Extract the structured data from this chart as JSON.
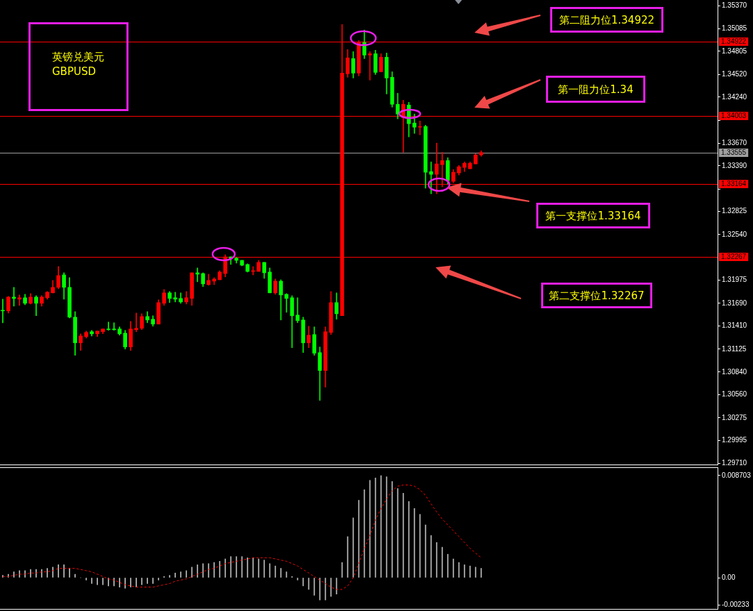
{
  "chart_data": [
    {
      "type": "candlestick",
      "title": "英镑兑美元\nGBPUSD",
      "annotations": [
        "第二阻力位1.34922",
        "第一阻力位1.34",
        "第一支撑位1.33164",
        "第二支撑位1.32267"
      ],
      "categories": [
        null,
        null,
        null,
        null,
        null,
        null,
        null,
        null,
        null,
        null,
        null,
        null,
        null,
        null,
        null,
        null,
        null,
        null,
        null,
        null,
        null,
        null,
        null,
        null,
        null,
        null,
        null,
        null,
        null,
        null,
        null,
        null,
        null,
        null,
        null,
        null,
        null,
        null,
        null,
        null,
        null,
        null,
        null,
        null,
        null,
        null,
        null,
        null,
        null,
        null,
        null,
        null,
        null,
        null,
        null,
        null,
        null,
        null,
        null,
        null,
        null,
        null,
        null,
        null,
        null,
        null,
        null,
        null,
        null,
        null,
        null,
        null,
        null,
        null,
        null,
        null,
        null,
        null,
        null,
        null,
        null,
        null,
        null,
        null,
        null,
        null,
        null,
        null,
        null,
        null,
        null,
        null,
        null,
        null,
        null,
        null,
        null,
        null,
        null,
        null,
        null,
        null,
        null,
        null,
        null,
        null,
        null,
        null,
        null,
        null,
        null,
        null,
        null,
        null,
        null,
        null,
        null,
        null,
        null,
        null,
        null,
        null,
        null,
        null,
        null,
        null,
        null,
        null,
        null
      ],
      "ohlc": [
        [
          1.31605,
          1.31742,
          1.31451,
          1.31597
        ],
        [
          1.31597,
          1.31777,
          1.31571,
          1.31768
        ],
        [
          1.31768,
          1.31888,
          1.31657,
          1.31751
        ],
        [
          1.31742,
          1.31794,
          1.31665,
          1.3176
        ],
        [
          1.3176,
          1.31802,
          1.31674,
          1.31691
        ],
        [
          1.31691,
          1.31811,
          1.31682,
          1.31768
        ],
        [
          1.31768,
          1.31785,
          1.31537,
          1.31691
        ],
        [
          1.31691,
          1.31785,
          1.31657,
          1.31768
        ],
        [
          1.3176,
          1.31837,
          1.31742,
          1.31828
        ],
        [
          1.3182,
          1.31974,
          1.3182,
          1.31888
        ],
        [
          1.31888,
          1.32145,
          1.31871,
          1.32034
        ],
        [
          1.32042,
          1.32068,
          1.31742,
          1.31888
        ],
        [
          1.31888,
          1.32008,
          1.31511,
          1.3152
        ],
        [
          1.3152,
          1.31588,
          1.31048,
          1.31202
        ],
        [
          1.31202,
          1.31314,
          1.31108,
          1.31288
        ],
        [
          1.3128,
          1.31348,
          1.31262,
          1.31331
        ],
        [
          1.3134,
          1.31357,
          1.31288,
          1.31314
        ],
        [
          1.31314,
          1.31348,
          1.3128,
          1.31348
        ],
        [
          1.3134,
          1.31374,
          1.31314,
          1.31374
        ],
        [
          1.31374,
          1.3146,
          1.31357,
          1.31365
        ],
        [
          1.31374,
          1.31451,
          1.31357,
          1.31365
        ],
        [
          1.31374,
          1.314,
          1.31297,
          1.31314
        ],
        [
          1.31322,
          1.31357,
          1.31125,
          1.31151
        ],
        [
          1.31151,
          1.31468,
          1.31108,
          1.31374
        ],
        [
          1.31365,
          1.31571,
          1.3134,
          1.31382
        ],
        [
          1.31382,
          1.31562,
          1.31365,
          1.31528
        ],
        [
          1.31528,
          1.31588,
          1.31451,
          1.31485
        ],
        [
          1.31494,
          1.31537,
          1.31408,
          1.31434
        ],
        [
          1.31434,
          1.31734,
          1.31434,
          1.317
        ],
        [
          1.31691,
          1.31862,
          1.31665,
          1.3182
        ],
        [
          1.3182,
          1.31837,
          1.317,
          1.31751
        ],
        [
          1.3176,
          1.31828,
          1.31708,
          1.31742
        ],
        [
          1.31751,
          1.3182,
          1.31691,
          1.31708
        ],
        [
          1.31708,
          1.31837,
          1.31682,
          1.3176
        ],
        [
          1.31751,
          1.32068,
          1.31665,
          1.32068
        ],
        [
          1.32068,
          1.32128,
          1.31957,
          1.32051
        ],
        [
          1.32059,
          1.32068,
          1.31897,
          1.31931
        ],
        [
          1.31922,
          1.32051,
          1.31914,
          1.31974
        ],
        [
          1.31965,
          1.32008,
          1.31922,
          1.31991
        ],
        [
          1.31982,
          1.32094,
          1.31982,
          1.32077
        ],
        [
          1.32059,
          1.32291,
          1.32017,
          1.32265
        ],
        [
          1.32265,
          1.32265,
          1.32171,
          1.32248
        ],
        [
          1.32248,
          1.32257,
          1.32188,
          1.32222
        ],
        [
          1.32222,
          1.32222,
          1.32154,
          1.32162
        ],
        [
          1.32171,
          1.32179,
          1.32077,
          1.32085
        ],
        [
          1.32085,
          1.32145,
          1.32042,
          1.32094
        ],
        [
          1.32085,
          1.32222,
          1.32085,
          1.32197
        ],
        [
          1.32197,
          1.32197,
          1.31999,
          1.32068
        ],
        [
          1.32077,
          1.32128,
          1.3182,
          1.3182
        ],
        [
          1.3182,
          1.31991,
          1.31802,
          1.31965
        ],
        [
          1.31965,
          1.31982,
          1.31485,
          1.31794
        ],
        [
          1.31802,
          1.31811,
          1.3158,
          1.31751
        ],
        [
          1.3176,
          1.31785,
          1.31142,
          1.31537
        ],
        [
          1.31545,
          1.3176,
          1.31451,
          1.31477
        ],
        [
          1.31485,
          1.3152,
          1.31082,
          1.31202
        ],
        [
          1.31202,
          1.31408,
          1.31142,
          1.31297
        ],
        [
          1.31305,
          1.314,
          1.31048,
          1.31074
        ],
        [
          1.31082,
          1.31151,
          1.30491,
          1.3086
        ],
        [
          1.3086,
          1.314,
          1.30654,
          1.3134
        ],
        [
          1.31331,
          1.31837,
          1.31305,
          1.317
        ],
        [
          1.317,
          1.3182,
          1.31494,
          1.31562
        ],
        [
          1.31537,
          1.35136,
          1.31537,
          1.34536
        ],
        [
          1.34528,
          1.34828,
          1.34485,
          1.34725
        ],
        [
          1.34716,
          1.34802,
          1.34476,
          1.34536
        ],
        [
          1.34536,
          1.34939,
          1.34502,
          1.34922
        ],
        [
          1.34913,
          1.35068,
          1.34716,
          1.34759
        ],
        [
          1.34759,
          1.34802,
          1.3445,
          1.34776
        ],
        [
          1.34776,
          1.34819,
          1.34519,
          1.34545
        ],
        [
          1.34553,
          1.34776,
          1.34553,
          1.34733
        ],
        [
          1.34733,
          1.34785,
          1.34279,
          1.34476
        ],
        [
          1.34485,
          1.34553,
          1.34116,
          1.34151
        ],
        [
          1.34151,
          1.34288,
          1.33971,
          1.34031
        ],
        [
          1.33988,
          1.34202,
          1.33559,
          1.34151
        ],
        [
          1.34142,
          1.34176,
          1.33748,
          1.33911
        ],
        [
          1.33919,
          1.34031,
          1.33791,
          1.33868
        ],
        [
          1.33868,
          1.33945,
          1.33773,
          1.33876
        ],
        [
          1.33876,
          1.33893,
          1.33114,
          1.33311
        ],
        [
          1.33319,
          1.33439,
          1.33045,
          1.33285
        ],
        [
          1.33285,
          1.33671,
          1.33045,
          1.33414
        ],
        [
          1.33405,
          1.33559,
          1.33131,
          1.33456
        ],
        [
          1.33456,
          1.33491,
          1.33165,
          1.33208
        ],
        [
          1.33199,
          1.33345,
          1.33182,
          1.33311
        ],
        [
          1.33302,
          1.33396,
          1.33276,
          1.33379
        ],
        [
          1.33371,
          1.33439,
          1.33319,
          1.33422
        ],
        [
          1.33354,
          1.33439,
          1.33354,
          1.33422
        ],
        [
          1.33414,
          1.33542,
          1.33414,
          1.33525
        ],
        [
          1.33525,
          1.33576,
          1.33508,
          1.33555
        ],
        null,
        null,
        null,
        null,
        null,
        null,
        null,
        null,
        null,
        null,
        null,
        null,
        null,
        null,
        null,
        null,
        null,
        null,
        null,
        null,
        null,
        null,
        null,
        null,
        null,
        null,
        null,
        null,
        null,
        null,
        null,
        null,
        null,
        null,
        null,
        null,
        null,
        null,
        null,
        null,
        null,
        null
      ],
      "colors": [
        "#00ff00",
        "#ff0000",
        "#00ff00",
        "#ff0000",
        "#00ff00",
        "#ff0000",
        "#00ff00",
        "#ff0000",
        "#ff0000",
        "#ff0000",
        "#ff0000",
        "#00ff00",
        "#00ff00",
        "#00ff00",
        "#ff0000",
        "#ff0000",
        "#00ff00",
        "#ff0000",
        "#ff0000",
        "#00ff00",
        "#00ff00",
        "#00ff00",
        "#00ff00",
        "#ff0000",
        "#ff0000",
        "#ff0000",
        "#00ff00",
        "#00ff00",
        "#ff0000",
        "#ff0000",
        "#00ff00",
        "#00ff00",
        "#00ff00",
        "#ff0000",
        "#ff0000",
        "#00ff00",
        "#00ff00",
        "#ff0000",
        "#ff0000",
        "#ff0000",
        "#ff0000",
        "#00ff00",
        "#00ff00",
        "#00ff00",
        "#00ff00",
        "#ff0000",
        "#ff0000",
        "#00ff00",
        "#00ff00",
        "#ff0000",
        "#00ff00",
        "#00ff00",
        "#00ff00",
        "#00ff00",
        "#00ff00",
        "#ff0000",
        "#00ff00",
        "#00ff00",
        "#ff0000",
        "#ff0000",
        "#00ff00",
        "#ff0000",
        "#ff0000",
        "#00ff00",
        "#ff0000",
        "#00ff00",
        "#ff0000",
        "#00ff00",
        "#ff0000",
        "#00ff00",
        "#00ff00",
        "#00ff00",
        "#ff0000",
        "#00ff00",
        "#00ff00",
        "#ff0000",
        "#00ff00",
        "#00ff00",
        "#ff0000",
        "#ff0000",
        "#00ff00",
        "#ff0000",
        "#ff0000",
        "#ff0000",
        "#ff0000",
        "#ff0000",
        "#ff0000",
        null,
        null,
        null,
        null,
        null,
        null,
        null,
        null,
        null,
        null,
        null,
        null,
        null,
        null,
        null,
        null,
        null,
        null,
        null,
        null,
        null,
        null,
        null,
        null,
        null,
        null,
        null,
        null,
        null,
        null,
        null,
        null,
        null,
        null,
        null,
        null,
        null,
        null,
        null,
        null,
        null,
        null
      ],
      "ylim": [
        1.2969,
        1.3544
      ],
      "yticks": [
        {
          "value": 1.2971,
          "label": "1.29710"
        },
        1.29995,
        1.30275,
        {
          "value": 1.3056,
          "label": "1.30560"
        },
        {
          "value": 1.3084,
          "label": "1.30840"
        },
        1.31125,
        {
          "value": 1.3141,
          "label": "1.31410"
        },
        {
          "value": 1.3169,
          "label": "1.31690"
        },
        1.31975,
        {
          "value": 1.3254,
          "label": "1.32540"
        },
        1.32825,
        {
          "value": 1.33105,
          "label": null
        },
        {
          "value": 1.3339,
          "label": "1.33390"
        },
        {
          "value": 1.3367,
          "label": "1.33670"
        },
        {
          "value": 1.33955,
          "label": null
        },
        {
          "value": 1.3424,
          "label": "1.34240"
        },
        {
          "value": 1.3452,
          "label": "1.34520"
        },
        1.34805,
        1.35085,
        {
          "value": 1.3537,
          "label": "1.35370"
        }
      ],
      "ref_lines": [
        {
          "axis": "y",
          "value": 1.34922,
          "label": "1.34922",
          "color": "#ff0000"
        },
        {
          "axis": "y",
          "value": 1.34003,
          "label": "1.34003",
          "color": "#ff0000"
        },
        {
          "axis": "y",
          "value": 1.33555,
          "label": "1.33555",
          "color": "#a0a0a0"
        },
        {
          "axis": "y",
          "value": 1.33164,
          "label": "1.33164",
          "color": "#ff0000"
        },
        {
          "axis": "y",
          "value": 1.32267,
          "label": "1.32267",
          "color": "#ff0000"
        }
      ],
      "grid": false,
      "legend": false,
      "tick_labels": "y"
    },
    {
      "type": "bar",
      "categories": [
        null,
        null,
        null,
        null,
        null,
        null,
        null,
        null,
        null,
        null,
        null,
        null,
        null,
        null,
        null,
        null,
        null,
        null,
        null,
        null,
        null,
        null,
        null,
        null,
        null,
        null,
        null,
        null,
        null,
        null,
        null,
        null,
        null,
        null,
        null,
        null,
        null,
        null,
        null,
        null,
        null,
        null,
        null,
        null,
        null,
        null,
        null,
        null,
        null,
        null,
        null,
        null,
        null,
        null,
        null,
        null,
        null,
        null,
        null,
        null,
        null,
        null,
        null,
        null,
        null,
        null,
        null,
        null,
        null,
        null,
        null,
        null,
        null,
        null,
        null,
        null,
        null,
        null,
        null,
        null,
        null,
        null,
        null,
        null,
        null,
        null,
        null,
        null,
        null,
        null,
        null,
        null,
        null,
        null,
        null,
        null,
        null,
        null,
        null,
        null,
        null,
        null,
        null,
        null,
        null,
        null,
        null,
        null,
        null,
        null,
        null,
        null,
        null,
        null,
        null,
        null,
        null,
        null,
        null,
        null,
        null,
        null,
        null,
        null,
        null,
        null,
        null,
        null,
        null
      ],
      "series": [
        {
          "color": "#c0c0c0",
          "values": [
            0.0002,
            0.0003,
            0.0005,
            0.0006,
            0.0006,
            0.0007,
            0.0007,
            0.0007,
            0.0008,
            0.0009,
            0.0011,
            0.0011,
            0.0008,
            0.0003,
            0,
            -0.0002,
            -0.0005,
            -0.0006,
            -0.0006,
            -0.0007,
            -0.0007,
            -0.0008,
            -0.0009,
            -0.0008,
            -0.0008,
            -0.0006,
            -0.0005,
            -0.0005,
            -0.0002,
            0.0001,
            0.0002,
            0.0004,
            0.0005,
            0.0006,
            0.0009,
            0.0011,
            0.0012,
            0.0012,
            0.0013,
            0.0014,
            0.0016,
            0.0018,
            0.0018,
            0.0018,
            0.0017,
            0.0017,
            0.0016,
            0.0015,
            0.0012,
            0.001,
            0.0008,
            0.0005,
            0.0001,
            -0.0002,
            -0.0007,
            -0.001,
            -0.0015,
            -0.0019,
            -0.0019,
            -0.0016,
            -0.0014,
            0.0013,
            0.0035,
            0.0051,
            0.0066,
            0.0075,
            0.0083,
            0.0085,
            0.0087,
            0.0086,
            0.0082,
            0.0076,
            0.0072,
            0.0065,
            0.0059,
            0.0054,
            0.0045,
            0.0036,
            0.003,
            0.0026,
            0.002,
            0.0016,
            0.0013,
            0.0011,
            0.001,
            0.0009,
            0.0008,
            null,
            null,
            null,
            null,
            null,
            null,
            null,
            null,
            null,
            null,
            null,
            null,
            null,
            null,
            null,
            null,
            null,
            null,
            null,
            null,
            null,
            null,
            null,
            null,
            null,
            null,
            null,
            null,
            null,
            null,
            null,
            null,
            null,
            null,
            null,
            null,
            null,
            null,
            null,
            null,
            null,
            null
          ]
        },
        {
          "type": "line",
          "color": "#ff0000",
          "line_style": "dashed",
          "values": [
            0.0001,
            0.0001,
            0.0002,
            0.0003,
            0.0003,
            0.0004,
            0.0004,
            0.0005,
            0.0005,
            0.0006,
            0.0008,
            0.0008,
            0.0008,
            0.0008,
            0.0007,
            0.0006,
            0.0005,
            0.0003,
            0.0001,
            -0.0001,
            -0.0002,
            -0.0004,
            -0.0006,
            -0.0007,
            -0.0008,
            -0.0008,
            -0.0008,
            -0.0008,
            -0.0007,
            -0.0006,
            -0.0005,
            -0.0003,
            -0.0002,
            -0.0001,
            0.0001,
            0.0003,
            0.0005,
            0.0007,
            0.0008,
            0.001,
            0.0012,
            0.0013,
            0.0014,
            0.0015,
            0.0016,
            0.0017,
            0.0017,
            0.0017,
            0.0017,
            0.0016,
            0.0015,
            0.0014,
            0.0012,
            0.001,
            0.0007,
            0.0004,
            0.0001,
            -0.0002,
            -0.0005,
            -0.0008,
            -0.001,
            -0.001,
            -0.0007,
            0,
            0.0012,
            0.0025,
            0.0036,
            0.0049,
            0.0059,
            0.0067,
            0.0074,
            0.0078,
            0.0079,
            0.0079,
            0.0078,
            0.0075,
            0.007,
            0.0063,
            0.0056,
            0.005,
            0.0045,
            0.004,
            0.0035,
            0.003,
            0.0025,
            0.0021,
            0.0017,
            null,
            null,
            null,
            null,
            null,
            null,
            null,
            null,
            null,
            null,
            null,
            null,
            null,
            null,
            null,
            null,
            null,
            null,
            null,
            null,
            null,
            null,
            null,
            null,
            null,
            null,
            null,
            null,
            null,
            null,
            null,
            null,
            null,
            null,
            null,
            null,
            null,
            null,
            null,
            null,
            null,
            null
          ]
        }
      ],
      "ylim": [
        -0.00272,
        0.00941
      ],
      "yticks": [
        -0.00233,
        {
          "value": 0,
          "label": "0.00"
        },
        0.008703
      ],
      "grid": false,
      "legend": false,
      "tick_labels": "y"
    }
  ]
}
